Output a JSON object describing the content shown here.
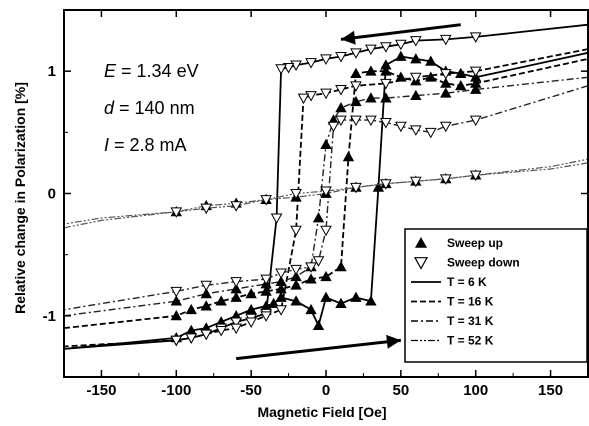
{
  "chart_data": {
    "type": "line",
    "xlabel": "Magnetic Field [Oe]",
    "ylabel": "Relative change in Polarization [%]",
    "xlim": [
      -175,
      175
    ],
    "ylim": [
      -1.5,
      1.5
    ],
    "xticks": [
      -150,
      -100,
      -50,
      0,
      50,
      100,
      150
    ],
    "yticks": [
      -1,
      0,
      1
    ],
    "grid": false,
    "legend_position": "lower-right",
    "annotations": [
      {
        "var": "E",
        "rest": " = 1.34 eV"
      },
      {
        "var": "d",
        "rest": " = 140 nm"
      },
      {
        "var": "I",
        "rest": " = 2.8 mA"
      }
    ],
    "legend": [
      {
        "label": "Sweep up",
        "marker": "triangle-up-filled"
      },
      {
        "label": "Sweep down",
        "marker": "triangle-down-open"
      },
      {
        "label": "T = 6 K",
        "line": "solid"
      },
      {
        "label": "T = 16 K",
        "line": "dashed"
      },
      {
        "label": "T = 31 K",
        "line": "dashdot"
      },
      {
        "label": "T = 52 K",
        "line": "dashdotdot"
      }
    ],
    "series": [
      {
        "temperature": "T = 6 K",
        "sweep": "up",
        "line": "solid",
        "color": "#000000",
        "x": [
          -175,
          -100,
          -90,
          -80,
          -70,
          -60,
          -50,
          -40,
          -35,
          -30,
          -20,
          -10,
          -5,
          0,
          10,
          20,
          30,
          35,
          40,
          50,
          60,
          70,
          80,
          90,
          100,
          175
        ],
        "y": [
          -1.27,
          -1.18,
          -1.12,
          -1.1,
          -1.05,
          -1.0,
          -0.95,
          -0.92,
          -0.9,
          -0.85,
          -0.88,
          -0.95,
          -1.08,
          -0.85,
          -0.9,
          -0.85,
          -0.88,
          0.05,
          1.05,
          1.12,
          1.1,
          1.08,
          1.0,
          0.98,
          0.95,
          1.15
        ]
      },
      {
        "temperature": "T = 6 K",
        "sweep": "down",
        "line": "solid",
        "color": "#000000",
        "x": [
          175,
          100,
          80,
          60,
          50,
          40,
          30,
          20,
          10,
          0,
          -10,
          -20,
          -25,
          -30,
          -33,
          -40,
          -50,
          -60,
          -70,
          -80,
          -90,
          -100,
          -175
        ],
        "y": [
          1.38,
          1.28,
          1.26,
          1.25,
          1.22,
          1.2,
          1.18,
          1.15,
          1.12,
          1.1,
          1.07,
          1.05,
          1.03,
          1.02,
          -0.2,
          -0.98,
          -1.02,
          -1.05,
          -1.1,
          -1.15,
          -1.18,
          -1.2,
          -1.27
        ]
      },
      {
        "temperature": "T = 16 K",
        "sweep": "up",
        "line": "dashed",
        "color": "#000000",
        "x": [
          -175,
          -100,
          -90,
          -80,
          -70,
          -60,
          -50,
          -40,
          -30,
          -20,
          -10,
          0,
          10,
          15,
          20,
          30,
          40,
          50,
          60,
          70,
          80,
          90,
          100,
          175
        ],
        "y": [
          -1.1,
          -1.0,
          -0.95,
          -0.92,
          -0.88,
          -0.85,
          -0.82,
          -0.8,
          -0.78,
          -0.75,
          -0.7,
          -0.68,
          -0.6,
          0.3,
          0.98,
          1.0,
          1.0,
          0.95,
          0.92,
          0.95,
          0.9,
          0.88,
          0.9,
          1.1
        ]
      },
      {
        "temperature": "T = 16 K",
        "sweep": "down",
        "line": "dashed",
        "color": "#000000",
        "x": [
          175,
          100,
          80,
          60,
          40,
          20,
          10,
          0,
          -10,
          -15,
          -20,
          -30,
          -40,
          -50,
          -60,
          -70,
          -80,
          -90,
          -100,
          -175
        ],
        "y": [
          1.18,
          1.0,
          0.98,
          0.95,
          0.9,
          0.88,
          0.85,
          0.82,
          0.8,
          0.78,
          -0.3,
          -0.95,
          -1.0,
          -1.05,
          -1.1,
          -1.12,
          -1.15,
          -1.18,
          -1.2,
          -1.25
        ]
      },
      {
        "temperature": "T = 31 K",
        "sweep": "up",
        "line": "dashdot",
        "color": "#222222",
        "x": [
          -175,
          -100,
          -80,
          -60,
          -40,
          -30,
          -20,
          -10,
          -5,
          0,
          5,
          10,
          20,
          30,
          40,
          60,
          80,
          100,
          175
        ],
        "y": [
          -1.0,
          -0.88,
          -0.82,
          -0.78,
          -0.74,
          -0.72,
          -0.68,
          -0.6,
          -0.2,
          0.4,
          0.6,
          0.7,
          0.75,
          0.78,
          0.78,
          0.8,
          0.82,
          0.85,
          0.95
        ]
      },
      {
        "temperature": "T = 31 K",
        "sweep": "down",
        "line": "dashdot",
        "color": "#222222",
        "x": [
          175,
          100,
          80,
          70,
          60,
          50,
          40,
          30,
          20,
          10,
          5,
          0,
          -5,
          -10,
          -20,
          -30,
          -40,
          -60,
          -80,
          -100,
          -175
        ],
        "y": [
          0.88,
          0.6,
          0.55,
          0.5,
          0.52,
          0.55,
          0.58,
          0.6,
          0.6,
          0.6,
          0.55,
          -0.3,
          -0.55,
          -0.6,
          -0.62,
          -0.65,
          -0.7,
          -0.72,
          -0.75,
          -0.8,
          -0.95
        ]
      },
      {
        "temperature": "T = 52 K",
        "sweep": "up",
        "line": "dashdotdot",
        "color": "#555555",
        "x": [
          -175,
          -150,
          -100,
          -80,
          -60,
          -40,
          -20,
          0,
          20,
          40,
          60,
          80,
          100,
          150,
          175
        ],
        "y": [
          -0.28,
          -0.22,
          -0.15,
          -0.1,
          -0.08,
          -0.05,
          -0.03,
          0.0,
          0.05,
          0.08,
          0.1,
          0.12,
          0.15,
          0.22,
          0.28
        ]
      },
      {
        "temperature": "T = 52 K",
        "sweep": "down",
        "line": "dashdotdot",
        "color": "#555555",
        "x": [
          175,
          150,
          100,
          80,
          60,
          40,
          20,
          0,
          -20,
          -40,
          -60,
          -80,
          -100,
          -150,
          -175
        ],
        "y": [
          0.25,
          0.2,
          0.15,
          0.12,
          0.1,
          0.08,
          0.05,
          0.02,
          0.0,
          -0.05,
          -0.1,
          -0.12,
          -0.15,
          -0.2,
          -0.25
        ]
      }
    ]
  }
}
